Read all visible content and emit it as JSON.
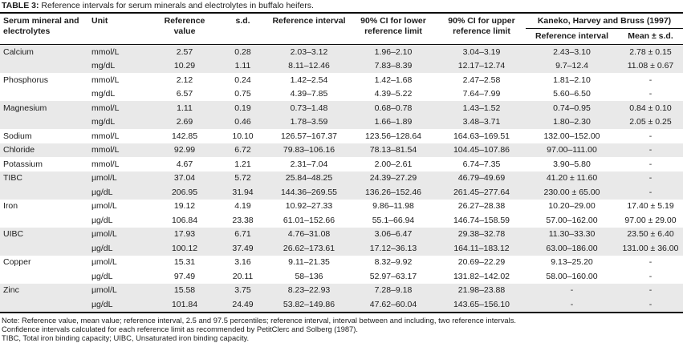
{
  "colors": {
    "row_shade": "#e9e9e9",
    "rule": "#0d0d0d"
  },
  "table": {
    "label": "TABLE 3:",
    "title": "Reference intervals for serum minerals and electrolytes in buffalo heifers.",
    "columns": {
      "mineral": "Serum mineral and electrolytes",
      "unit": "Unit",
      "ref_value": "Reference value",
      "sd": "s.d.",
      "ref_interval": "Reference interval",
      "ci_lower": "90% CI for lower reference limit",
      "ci_upper": "90% CI for upper reference limit",
      "kaneko_group": "Kaneko, Harvey and Bruss (1997)",
      "kaneko_ref_interval": "Reference interval",
      "kaneko_mean_sd": "Mean ± s.d."
    },
    "rows": [
      {
        "mineral": "Calcium",
        "unit": "mmol/L",
        "ref_value": "2.57",
        "sd": "0.28",
        "ref_interval": "2.03–3.12",
        "ci_lower": "1.96–2.10",
        "ci_upper": "3.04–3.19",
        "kaneko_ri": "2.43–3.10",
        "kaneko_mean": "2.78 ± 0.15",
        "shaded": true
      },
      {
        "mineral": "",
        "unit": "mg/dL",
        "ref_value": "10.29",
        "sd": "1.11",
        "ref_interval": "8.11–12.46",
        "ci_lower": "7.83–8.39",
        "ci_upper": "12.17–12.74",
        "kaneko_ri": "9.7–12.4",
        "kaneko_mean": "11.08 ± 0.67",
        "shaded": true
      },
      {
        "mineral": "Phosphorus",
        "unit": "mmol/L",
        "ref_value": "2.12",
        "sd": "0.24",
        "ref_interval": "1.42–2.54",
        "ci_lower": "1.42–1.68",
        "ci_upper": "2.47–2.58",
        "kaneko_ri": "1.81–2.10",
        "kaneko_mean": "-",
        "shaded": false
      },
      {
        "mineral": "",
        "unit": "mg/dL",
        "ref_value": "6.57",
        "sd": "0.75",
        "ref_interval": "4.39–7.85",
        "ci_lower": "4.39–5.22",
        "ci_upper": "7.64–7.99",
        "kaneko_ri": "5.60–6.50",
        "kaneko_mean": "-",
        "shaded": false
      },
      {
        "mineral": "Magnesium",
        "unit": "mmol/L",
        "ref_value": "1.11",
        "sd": "0.19",
        "ref_interval": "0.73–1.48",
        "ci_lower": "0.68–0.78",
        "ci_upper": "1.43–1.52",
        "kaneko_ri": "0.74–0.95",
        "kaneko_mean": "0.84 ± 0.10",
        "shaded": true
      },
      {
        "mineral": "",
        "unit": "mg/dL",
        "ref_value": "2.69",
        "sd": "0.46",
        "ref_interval": "1.78–3.59",
        "ci_lower": "1.66–1.89",
        "ci_upper": "3.48–3.71",
        "kaneko_ri": "1.80–2.30",
        "kaneko_mean": "2.05 ± 0.25",
        "shaded": true
      },
      {
        "mineral": "Sodium",
        "unit": "mmol/L",
        "ref_value": "142.85",
        "sd": "10.10",
        "ref_interval": "126.57–167.37",
        "ci_lower": "123.56–128.64",
        "ci_upper": "164.63–169.51",
        "kaneko_ri": "132.00–152.00",
        "kaneko_mean": "-",
        "shaded": false
      },
      {
        "mineral": "Chloride",
        "unit": "mmol/L",
        "ref_value": "92.99",
        "sd": "6.72",
        "ref_interval": "79.83–106.16",
        "ci_lower": "78.13–81.54",
        "ci_upper": "104.45–107.86",
        "kaneko_ri": "97.00–111.00",
        "kaneko_mean": "-",
        "shaded": true
      },
      {
        "mineral": "Potassium",
        "unit": "mmol/L",
        "ref_value": "4.67",
        "sd": "1.21",
        "ref_interval": "2.31–7.04",
        "ci_lower": "2.00–2.61",
        "ci_upper": "6.74–7.35",
        "kaneko_ri": "3.90–5.80",
        "kaneko_mean": "-",
        "shaded": false
      },
      {
        "mineral": "TIBC",
        "unit": "µmol/L",
        "ref_value": "37.04",
        "sd": "5.72",
        "ref_interval": "25.84–48.25",
        "ci_lower": "24.39–27.29",
        "ci_upper": "46.79–49.69",
        "kaneko_ri": "41.20 ± 11.60",
        "kaneko_mean": "-",
        "shaded": true
      },
      {
        "mineral": "",
        "unit": "µg/dL",
        "ref_value": "206.95",
        "sd": "31.94",
        "ref_interval": "144.36–269.55",
        "ci_lower": "136.26–152.46",
        "ci_upper": "261.45–277.64",
        "kaneko_ri": "230.00 ± 65.00",
        "kaneko_mean": "-",
        "shaded": true
      },
      {
        "mineral": "Iron",
        "unit": "µmol/L",
        "ref_value": "19.12",
        "sd": "4.19",
        "ref_interval": "10.92–27.33",
        "ci_lower": "9.86–11.98",
        "ci_upper": "26.27–28.38",
        "kaneko_ri": "10.20–29.00",
        "kaneko_mean": "17.40 ± 5.19",
        "shaded": false
      },
      {
        "mineral": "",
        "unit": "µg/dL",
        "ref_value": "106.84",
        "sd": "23.38",
        "ref_interval": "61.01–152.66",
        "ci_lower": "55.1–66.94",
        "ci_upper": "146.74–158.59",
        "kaneko_ri": "57.00–162.00",
        "kaneko_mean": "97.00 ± 29.00",
        "shaded": false
      },
      {
        "mineral": "UIBC",
        "unit": "µmol/L",
        "ref_value": "17.93",
        "sd": "6.71",
        "ref_interval": "4.76–31.08",
        "ci_lower": "3.06–6.47",
        "ci_upper": "29.38–32.78",
        "kaneko_ri": "11.30–33.30",
        "kaneko_mean": "23.50 ± 6.40",
        "shaded": true
      },
      {
        "mineral": "",
        "unit": "µg/dL",
        "ref_value": "100.12",
        "sd": "37.49",
        "ref_interval": "26.62–173.61",
        "ci_lower": "17.12–36.13",
        "ci_upper": "164.11–183.12",
        "kaneko_ri": "63.00–186.00",
        "kaneko_mean": "131.00 ± 36.00",
        "shaded": true
      },
      {
        "mineral": "Copper",
        "unit": "µmol/L",
        "ref_value": "15.31",
        "sd": "3.16",
        "ref_interval": "9.11–21.35",
        "ci_lower": "8.32–9.92",
        "ci_upper": "20.69–22.29",
        "kaneko_ri": "9.13–25.20",
        "kaneko_mean": "-",
        "shaded": false
      },
      {
        "mineral": "",
        "unit": "µg/dL",
        "ref_value": "97.49",
        "sd": "20.11",
        "ref_interval": "58–136",
        "ci_lower": "52.97–63.17",
        "ci_upper": "131.82–142.02",
        "kaneko_ri": "58.00–160.00",
        "kaneko_mean": "-",
        "shaded": false
      },
      {
        "mineral": "Zinc",
        "unit": "µmol/L",
        "ref_value": "15.58",
        "sd": "3.75",
        "ref_interval": "8.23–22.93",
        "ci_lower": "7.28–9.18",
        "ci_upper": "21.98–23.88",
        "kaneko_ri": "-",
        "kaneko_mean": "-",
        "shaded": true
      },
      {
        "mineral": "",
        "unit": "µg/dL",
        "ref_value": "101.84",
        "sd": "24.49",
        "ref_interval": "53.82–149.86",
        "ci_lower": "47.62–60.04",
        "ci_upper": "143.65–156.10",
        "kaneko_ri": "-",
        "kaneko_mean": "-",
        "shaded": true
      }
    ],
    "footnotes": [
      "Note: Reference value, mean value; reference interval, 2.5 and 97.5 percentiles; reference interval, interval between and including, two reference intervals.",
      "Confidence intervals calculated for each reference limit as recommended by PetitClerc and Solberg (1987).",
      "TIBC, Total iron binding capacity; UIBC, Unsaturated iron binding capacity."
    ]
  }
}
